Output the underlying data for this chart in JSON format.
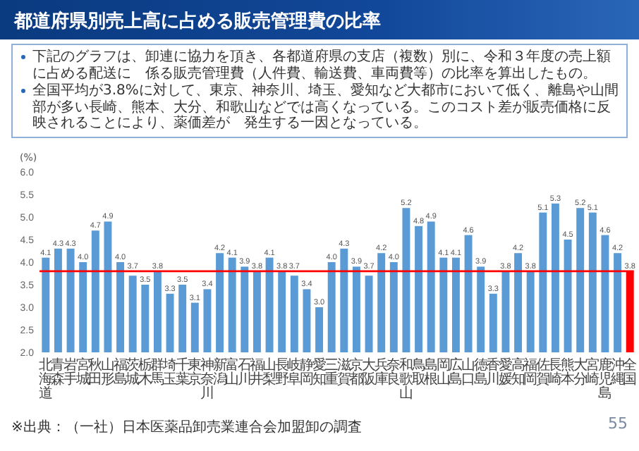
{
  "chart_data": {
    "type": "bar",
    "title": "都道府県別売上高に占める販売管理費の比率",
    "annotations": [
      "下記のグラフは、卸連に協力を頂き、各都道府県の支店（複数）別に、令和３年度の売上額に占める配送に　係る販売管理費（人件費、輸送費、車両費等）の比率を算出したもの。",
      "全国平均が3.8%に対して、東京、神奈川、埼玉、愛知など大都市において低く、離島や山間部が多い長崎、熊本、大分、和歌山などでは高くなっている。このコスト差が販売価格に反映されることにより、薬価差が　発生する一因となっている。",
      "※出典：（一社）日本医薬品卸売業連合会加盟卸の調査",
      "55"
    ],
    "ylabel": "(%)",
    "categories": [
      "北海道",
      "青森",
      "岩手",
      "宮城",
      "秋田",
      "山形",
      "福島",
      "茨城",
      "栃木",
      "群馬",
      "埼玉",
      "千葉",
      "東京",
      "神奈川",
      "新潟",
      "富山",
      "石川",
      "福井",
      "山梨",
      "長野",
      "岐阜",
      "静岡",
      "愛知",
      "三重",
      "滋賀",
      "京都",
      "大阪",
      "兵庫",
      "奈良",
      "和歌山",
      "鳥取",
      "島根",
      "岡山",
      "広島",
      "山口",
      "徳島",
      "香川",
      "愛媛",
      "高知",
      "福岡",
      "佐賀",
      "長崎",
      "熊本",
      "大分",
      "宮崎",
      "鹿児島",
      "沖縄",
      "全国"
    ],
    "values": [
      4.1,
      4.3,
      4.3,
      4.0,
      4.7,
      4.9,
      4.0,
      3.7,
      3.5,
      3.8,
      3.3,
      3.5,
      3.1,
      3.4,
      4.2,
      4.1,
      3.9,
      3.8,
      4.1,
      3.8,
      3.7,
      3.4,
      3.0,
      4.0,
      4.3,
      3.9,
      3.7,
      4.2,
      4.0,
      5.2,
      4.8,
      4.9,
      4.1,
      4.1,
      4.6,
      3.9,
      3.3,
      3.8,
      4.2,
      3.8,
      5.1,
      5.3,
      4.5,
      5.2,
      5.1,
      4.6,
      4.2,
      3.8
    ],
    "colors": [
      "#5b9bd5",
      "#5b9bd5",
      "#5b9bd5",
      "#5b9bd5",
      "#5b9bd5",
      "#5b9bd5",
      "#5b9bd5",
      "#5b9bd5",
      "#5b9bd5",
      "#5b9bd5",
      "#5b9bd5",
      "#5b9bd5",
      "#5b9bd5",
      "#5b9bd5",
      "#5b9bd5",
      "#5b9bd5",
      "#5b9bd5",
      "#5b9bd5",
      "#5b9bd5",
      "#5b9bd5",
      "#5b9bd5",
      "#5b9bd5",
      "#5b9bd5",
      "#5b9bd5",
      "#5b9bd5",
      "#5b9bd5",
      "#5b9bd5",
      "#5b9bd5",
      "#5b9bd5",
      "#5b9bd5",
      "#5b9bd5",
      "#5b9bd5",
      "#5b9bd5",
      "#5b9bd5",
      "#5b9bd5",
      "#5b9bd5",
      "#5b9bd5",
      "#5b9bd5",
      "#5b9bd5",
      "#5b9bd5",
      "#5b9bd5",
      "#5b9bd5",
      "#5b9bd5",
      "#5b9bd5",
      "#5b9bd5",
      "#5b9bd5",
      "#5b9bd5",
      "#ff0000"
    ],
    "ylim": [
      2,
      6
    ],
    "yticks": [
      {
        "value": 2,
        "label": "2.0"
      },
      {
        "value": 2.5,
        "label": "2.5"
      },
      {
        "value": 3,
        "label": "3.0"
      },
      {
        "value": 3.5,
        "label": "3.5"
      },
      {
        "value": 4,
        "label": "4.0"
      },
      {
        "value": 4.5,
        "label": "4.5"
      },
      {
        "value": 5,
        "label": "5.0"
      },
      {
        "value": 5.5,
        "label": "5.5"
      },
      {
        "value": 6,
        "label": "6.0"
      }
    ],
    "value_labels": [
      "4.1",
      "4.3",
      "4.3",
      "4.0",
      "4.7",
      "4.9",
      "4.0",
      "3.7",
      "3.5",
      "3.8",
      "3.3",
      "3.5",
      "3.1",
      "3.4",
      "4.2",
      "4.1",
      "3.9",
      "3.8",
      "4.1",
      "3.8",
      "3.7",
      "3.4",
      "3.0",
      "4.0",
      "4.3",
      "3.9",
      "3.7",
      "4.2",
      "4.0",
      "5.2",
      "4.8",
      "4.9",
      "4.1",
      "4.1",
      "4.6",
      "3.9",
      "3.3",
      "3.8",
      "4.2",
      "3.8",
      "5.1",
      "5.3",
      "4.5",
      "5.2",
      "5.1",
      "4.6",
      "4.2",
      "3.8"
    ],
    "ref_lines": [
      {
        "axis": "y",
        "value": 3.8,
        "color": "#ff0000"
      }
    ]
  }
}
